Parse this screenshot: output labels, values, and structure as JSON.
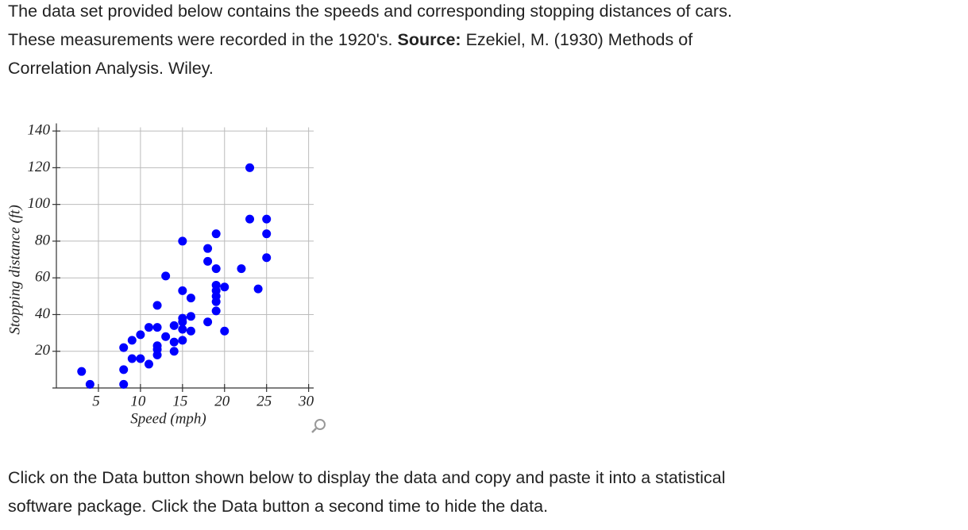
{
  "intro": {
    "text": "The data set provided below contains the speeds and corresponding stopping distances of cars. These measurements were recorded in the 1920's.",
    "source_label": "Source:",
    "source": "Ezekiel, M. (1930) Methods of Correlation Analysis. Wiley."
  },
  "chart_data": {
    "type": "scatter",
    "xlabel": "Speed (mph)",
    "ylabel": "Stopping distance (ft)",
    "color": "#0000ff",
    "grid": true,
    "x": [
      3,
      4,
      8,
      8,
      8,
      9,
      9,
      10,
      10,
      11,
      11,
      12,
      12,
      12,
      12,
      12,
      13,
      13,
      14,
      14,
      14,
      15,
      15,
      15,
      15,
      15,
      15,
      16,
      16,
      16,
      18,
      18,
      18,
      19,
      19,
      19,
      19,
      19,
      19,
      19,
      20,
      20,
      22,
      23,
      23,
      24,
      25,
      25,
      25
    ],
    "values": [
      9,
      2,
      2,
      10,
      22,
      16,
      26,
      16,
      29,
      13,
      33,
      33,
      23,
      21,
      18,
      45,
      61,
      28,
      34,
      25,
      20,
      80,
      53,
      38,
      36,
      32,
      26,
      49,
      39,
      31,
      76,
      69,
      36,
      84,
      65,
      56,
      53,
      50,
      47,
      42,
      55,
      31,
      65,
      120,
      92,
      54,
      92,
      84,
      71
    ],
    "xlim": [
      0,
      30.6
    ],
    "ylim": [
      0,
      142
    ],
    "xticks": [
      5,
      10,
      15,
      20,
      25,
      30
    ],
    "yticks": [
      20,
      40,
      60,
      80,
      100,
      120,
      140
    ]
  },
  "outro": {
    "text": "Click on the Data button shown below to display the data and copy and paste it into a statistical software package. Click the Data button a second time to hide the data."
  }
}
